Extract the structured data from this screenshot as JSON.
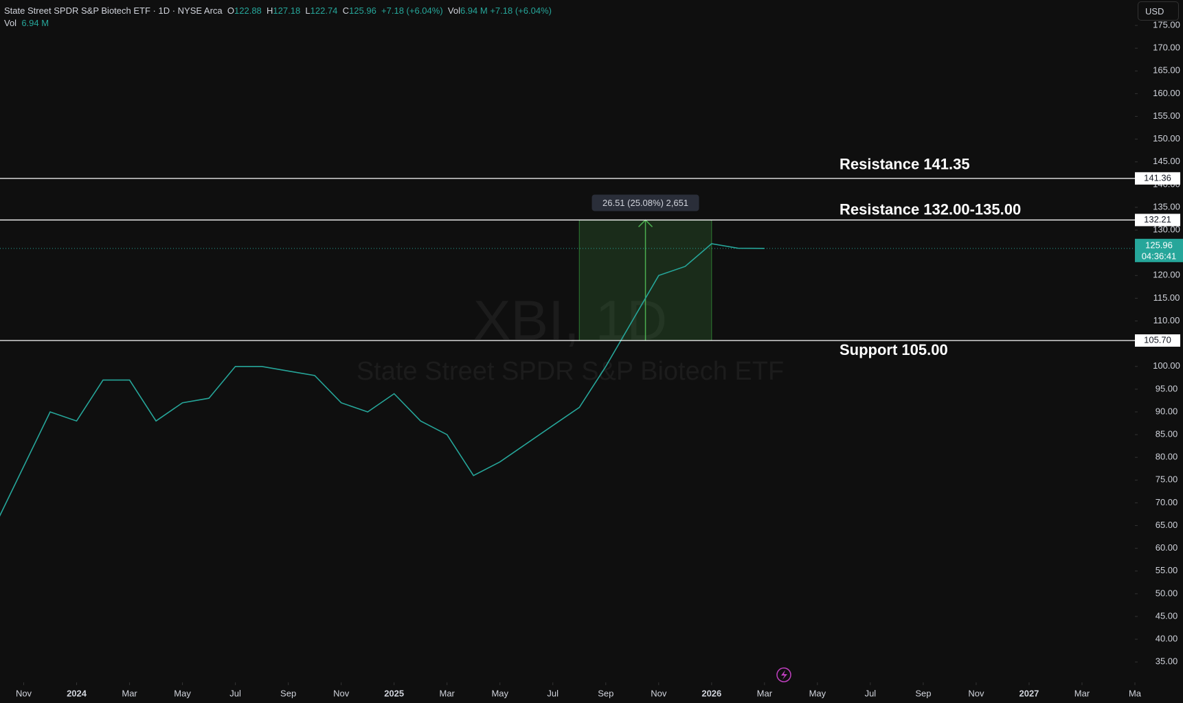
{
  "header": {
    "symbol": "State Street SPDR S&P Biotech ETF · 1D · NYSE Arca",
    "ohlc": [
      {
        "key": "O",
        "value": "122.88"
      },
      {
        "key": "H",
        "value": "127.18"
      },
      {
        "key": "L",
        "value": "122.74"
      },
      {
        "key": "C",
        "value": "125.96"
      }
    ],
    "change": "+7.18 (+6.04%)",
    "vol_label": "Vol",
    "vol": "6.94 M",
    "currency": "USD"
  },
  "chart_data": {
    "type": "line",
    "watermark": [
      "XBI, 1D",
      "State Street SPDR S&P Biotech ETF"
    ],
    "x": [
      "2023-10",
      "2023-11",
      "2023-12",
      "2024-01",
      "2024-02",
      "2024-03",
      "2024-04",
      "2024-05",
      "2024-06",
      "2024-07",
      "2024-08",
      "2024-09",
      "2024-10",
      "2024-11",
      "2024-12",
      "2025-01",
      "2025-02",
      "2025-03",
      "2025-04",
      "2025-05",
      "2025-06",
      "2025-07",
      "2025-08",
      "2025-09",
      "2025-10",
      "2025-11",
      "2025-12",
      "2026-01",
      "2026-02",
      "2026-03"
    ],
    "series": [
      {
        "name": "XBI",
        "color": "#26a69a",
        "values": [
          66,
          78,
          90,
          88,
          97,
          97,
          88,
          92,
          93,
          100,
          100,
          99,
          98,
          92,
          90,
          94,
          88,
          85,
          76,
          79,
          83,
          87,
          91,
          100,
          110,
          120,
          122,
          127,
          126,
          125.96
        ]
      }
    ],
    "xlim": [
      "2023-10",
      "2027-05"
    ],
    "xticks": [
      {
        "value": "2023-11",
        "label": "Nov"
      },
      {
        "value": "2024-01",
        "label": "2024"
      },
      {
        "value": "2024-03",
        "label": "Mar"
      },
      {
        "value": "2024-05",
        "label": "May"
      },
      {
        "value": "2024-07",
        "label": "Jul"
      },
      {
        "value": "2024-09",
        "label": "Sep"
      },
      {
        "value": "2024-11",
        "label": "Nov"
      },
      {
        "value": "2025-01",
        "label": "2025"
      },
      {
        "value": "2025-03",
        "label": "Mar"
      },
      {
        "value": "2025-05",
        "label": "May"
      },
      {
        "value": "2025-07",
        "label": "Jul"
      },
      {
        "value": "2025-09",
        "label": "Sep"
      },
      {
        "value": "2025-11",
        "label": "Nov"
      },
      {
        "value": "2026-01",
        "label": "2026"
      },
      {
        "value": "2026-03",
        "label": "Mar"
      },
      {
        "value": "2026-05",
        "label": "May"
      },
      {
        "value": "2026-07",
        "label": "Jul"
      },
      {
        "value": "2026-09",
        "label": "Sep"
      },
      {
        "value": "2026-11",
        "label": "Nov"
      },
      {
        "value": "2027-01",
        "label": "2027"
      },
      {
        "value": "2027-03",
        "label": "Mar"
      },
      {
        "value": "2027-05",
        "label": "Ma"
      }
    ],
    "ylim": [
      30.5,
      180.6
    ],
    "yticks": [
      {
        "value": 35,
        "label": "35.00"
      },
      {
        "value": 40,
        "label": "40.00"
      },
      {
        "value": 45,
        "label": "45.00"
      },
      {
        "value": 50,
        "label": "50.00"
      },
      {
        "value": 55,
        "label": "55.00"
      },
      {
        "value": 60,
        "label": "60.00"
      },
      {
        "value": 65,
        "label": "65.00"
      },
      {
        "value": 70,
        "label": "70.00"
      },
      {
        "value": 75,
        "label": "75.00"
      },
      {
        "value": 80,
        "label": "80.00"
      },
      {
        "value": 85,
        "label": "85.00"
      },
      {
        "value": 90,
        "label": "90.00"
      },
      {
        "value": 95,
        "label": "95.00"
      },
      {
        "value": 100,
        "label": "100.00"
      },
      {
        "value": 105,
        "label": "105.00"
      },
      {
        "value": 110,
        "label": "110.00"
      },
      {
        "value": 115,
        "label": "115.00"
      },
      {
        "value": 120,
        "label": "120.00"
      },
      {
        "value": 125,
        "label": "125.00"
      },
      {
        "value": 130,
        "label": "130.00"
      },
      {
        "value": 135,
        "label": "135.00"
      },
      {
        "value": 140,
        "label": "140.00"
      },
      {
        "value": 145,
        "label": "145.00"
      },
      {
        "value": 150,
        "label": "150.00"
      },
      {
        "value": 155,
        "label": "155.00"
      },
      {
        "value": 160,
        "label": "160.00"
      },
      {
        "value": 165,
        "label": "165.00"
      },
      {
        "value": 170,
        "label": "170.00"
      },
      {
        "value": 175,
        "label": "175.00"
      }
    ],
    "levels": [
      {
        "value": 141.36,
        "label": "141.36",
        "note": "Resistance 141.35"
      },
      {
        "value": 132.21,
        "label": "132.21",
        "note": "Resistance 132.00-135.00"
      },
      {
        "value": 105.7,
        "label": "105.70",
        "note": "Support 105.00"
      }
    ],
    "current": {
      "value": 125.96,
      "label": "125.96",
      "countdown": "04:36:41"
    },
    "measure": {
      "from": 105.7,
      "to": 132.21,
      "x": [
        "2025-08",
        "2026-01"
      ],
      "label": "26.51 (25.08%) 2,651"
    }
  }
}
